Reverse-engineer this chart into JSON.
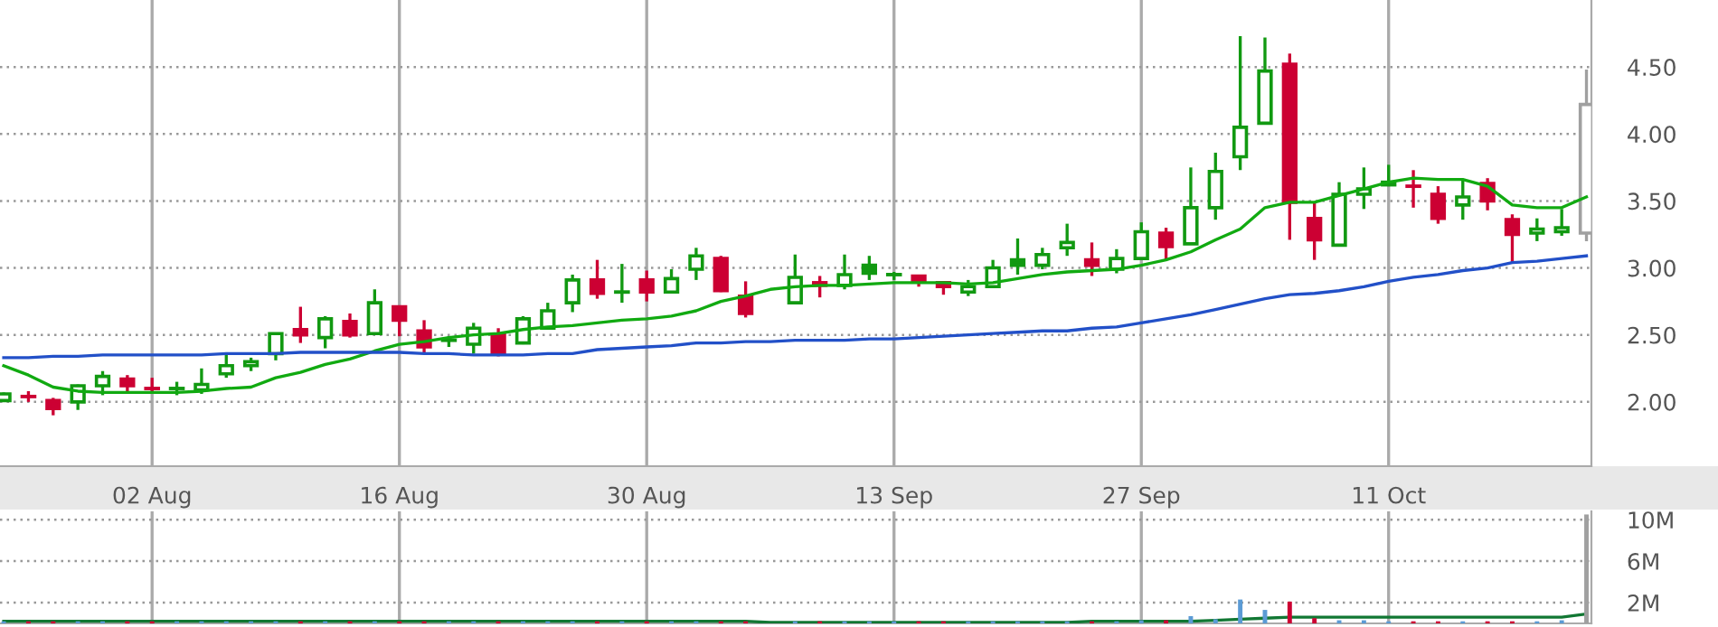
{
  "chart_data": [
    {
      "type": "candlestick",
      "categories": [
        null,
        null,
        null,
        null,
        null,
        null,
        "02 Aug",
        null,
        null,
        null,
        null,
        null,
        null,
        null,
        null,
        null,
        "16 Aug",
        null,
        null,
        null,
        null,
        null,
        null,
        null,
        null,
        null,
        "30 Aug",
        null,
        null,
        null,
        null,
        null,
        null,
        null,
        null,
        null,
        "13 Sep",
        null,
        null,
        null,
        null,
        null,
        null,
        null,
        null,
        null,
        "27 Sep",
        null,
        null,
        null,
        null,
        null,
        null,
        null,
        null,
        null,
        "11 Oct",
        null,
        null,
        null,
        null,
        null,
        null,
        null,
        null
      ],
      "ohlc": [
        [
          2.01,
          2.07,
          2.0,
          2.06
        ],
        [
          2.04,
          2.08,
          2.0,
          2.03
        ],
        [
          2.01,
          2.03,
          1.9,
          1.95
        ],
        [
          2.0,
          2.13,
          1.94,
          2.12
        ],
        [
          2.12,
          2.23,
          2.05,
          2.19
        ],
        [
          2.17,
          2.2,
          2.07,
          2.12
        ],
        [
          2.1,
          2.18,
          2.07,
          2.1
        ],
        [
          2.1,
          2.15,
          2.05,
          2.1
        ],
        [
          2.09,
          2.25,
          2.06,
          2.13
        ],
        [
          2.21,
          2.37,
          2.18,
          2.27
        ],
        [
          2.27,
          2.33,
          2.23,
          2.3
        ],
        [
          2.36,
          2.51,
          2.31,
          2.51
        ],
        [
          2.54,
          2.71,
          2.44,
          2.5
        ],
        [
          2.48,
          2.64,
          2.4,
          2.62
        ],
        [
          2.6,
          2.66,
          2.48,
          2.5
        ],
        [
          2.51,
          2.84,
          2.51,
          2.74
        ],
        [
          2.71,
          2.71,
          2.49,
          2.61
        ],
        [
          2.53,
          2.61,
          2.36,
          2.41
        ],
        [
          2.46,
          2.49,
          2.41,
          2.46
        ],
        [
          2.43,
          2.59,
          2.36,
          2.55
        ],
        [
          2.5,
          2.55,
          2.34,
          2.36
        ],
        [
          2.44,
          2.64,
          2.43,
          2.62
        ],
        [
          2.55,
          2.74,
          2.55,
          2.68
        ],
        [
          2.74,
          2.95,
          2.67,
          2.91
        ],
        [
          2.91,
          3.06,
          2.77,
          2.81
        ],
        [
          2.82,
          3.03,
          2.74,
          2.83
        ],
        [
          2.91,
          2.98,
          2.75,
          2.82
        ],
        [
          2.82,
          2.99,
          2.82,
          2.92
        ],
        [
          2.99,
          3.15,
          2.91,
          3.09
        ],
        [
          3.07,
          3.09,
          2.82,
          2.83
        ],
        [
          2.79,
          2.9,
          2.63,
          2.66
        ],
        null,
        [
          2.74,
          3.1,
          2.74,
          2.93
        ],
        [
          2.89,
          2.94,
          2.78,
          2.87
        ],
        [
          2.87,
          3.1,
          2.84,
          2.95
        ],
        [
          3.02,
          3.09,
          2.91,
          2.96
        ],
        [
          2.95,
          2.97,
          2.91,
          2.94
        ],
        [
          2.94,
          2.94,
          2.86,
          2.9
        ],
        [
          2.89,
          2.89,
          2.8,
          2.86
        ],
        [
          2.82,
          2.91,
          2.79,
          2.86
        ],
        [
          2.86,
          3.06,
          2.86,
          3.0
        ],
        [
          3.06,
          3.22,
          2.95,
          3.02
        ],
        [
          3.02,
          3.15,
          2.99,
          3.1
        ],
        [
          3.15,
          3.33,
          3.09,
          3.19
        ],
        [
          3.06,
          3.19,
          2.94,
          3.02
        ],
        [
          2.99,
          3.14,
          2.96,
          3.07
        ],
        [
          3.07,
          3.34,
          3.07,
          3.27
        ],
        [
          3.26,
          3.3,
          3.06,
          3.16
        ],
        [
          3.18,
          3.75,
          3.18,
          3.45
        ],
        [
          3.45,
          3.86,
          3.36,
          3.72
        ],
        [
          3.83,
          4.73,
          3.73,
          4.05
        ],
        [
          4.08,
          4.72,
          4.08,
          4.47
        ],
        [
          4.52,
          4.6,
          3.21,
          3.49
        ],
        [
          3.37,
          3.49,
          3.06,
          3.21
        ],
        [
          3.17,
          3.64,
          3.17,
          3.55
        ],
        [
          3.55,
          3.75,
          3.44,
          3.59
        ],
        [
          3.64,
          3.77,
          3.61,
          3.62
        ],
        [
          3.61,
          3.73,
          3.45,
          3.61
        ],
        [
          3.55,
          3.61,
          3.33,
          3.37
        ],
        [
          3.47,
          3.66,
          3.36,
          3.53
        ],
        [
          3.63,
          3.67,
          3.43,
          3.5
        ],
        [
          3.36,
          3.4,
          3.04,
          3.25
        ],
        [
          3.26,
          3.37,
          3.2,
          3.29
        ],
        [
          3.27,
          3.44,
          3.24,
          3.3
        ],
        [
          3.26,
          4.48,
          3.2,
          4.22
        ]
      ],
      "colors": [
        "#119911",
        "#cc0033",
        "#cc0033",
        "#119911",
        "#119911",
        "#cc0033",
        "#cc0033",
        "#119911",
        "#119911",
        "#119911",
        "#119911",
        "#119911",
        "#cc0033",
        "#119911",
        "#cc0033",
        "#119911",
        "#cc0033",
        "#cc0033",
        "#119911",
        "#119911",
        "#cc0033",
        "#119911",
        "#119911",
        "#119911",
        "#cc0033",
        "#119911",
        "#cc0033",
        "#119911",
        "#119911",
        "#cc0033",
        "#cc0033",
        null,
        "#119911",
        "#cc0033",
        "#119911",
        "#119911",
        "#119911",
        "#cc0033",
        "#cc0033",
        "#119911",
        "#119911",
        "#119911",
        "#119911",
        "#119911",
        "#cc0033",
        "#119911",
        "#119911",
        "#cc0033",
        "#119911",
        "#119911",
        "#119911",
        "#119911",
        "#cc0033",
        "#cc0033",
        "#119911",
        "#119911",
        "#119911",
        "#cc0033",
        "#cc0033",
        "#119911",
        "#cc0033",
        "#cc0033",
        "#119911",
        "#119911",
        "#a0a0a0"
      ],
      "series": [
        {
          "type": "line",
          "color": "#11aa11",
          "values": [
            2.27,
            2.2,
            2.11,
            2.08,
            2.07,
            2.07,
            2.07,
            2.07,
            2.08,
            2.1,
            2.11,
            2.18,
            2.22,
            2.28,
            2.32,
            2.38,
            2.43,
            2.45,
            2.48,
            2.5,
            2.51,
            2.54,
            2.56,
            2.57,
            2.59,
            2.61,
            2.62,
            2.64,
            2.68,
            2.75,
            2.79,
            2.84,
            2.86,
            2.87,
            2.87,
            2.88,
            2.89,
            2.89,
            2.89,
            2.88,
            2.89,
            2.92,
            2.95,
            2.97,
            2.98,
            2.99,
            3.02,
            3.06,
            3.12,
            3.21,
            3.29,
            3.45,
            3.49,
            3.49,
            3.54,
            3.59,
            3.64,
            3.67,
            3.66,
            3.66,
            3.61,
            3.47,
            3.45,
            3.45,
            3.53
          ]
        },
        {
          "type": "line",
          "color": "#2250c8",
          "values": [
            2.33,
            2.33,
            2.34,
            2.34,
            2.35,
            2.35,
            2.35,
            2.35,
            2.35,
            2.36,
            2.36,
            2.36,
            2.37,
            2.37,
            2.37,
            2.37,
            2.37,
            2.36,
            2.36,
            2.35,
            2.35,
            2.35,
            2.36,
            2.36,
            2.39,
            2.4,
            2.41,
            2.42,
            2.44,
            2.44,
            2.45,
            2.45,
            2.46,
            2.46,
            2.46,
            2.47,
            2.47,
            2.48,
            2.49,
            2.5,
            2.51,
            2.52,
            2.53,
            2.53,
            2.55,
            2.56,
            2.59,
            2.62,
            2.65,
            2.69,
            2.73,
            2.77,
            2.8,
            2.81,
            2.83,
            2.86,
            2.9,
            2.93,
            2.95,
            2.98,
            3.0,
            3.04,
            3.05,
            3.07,
            3.09
          ]
        }
      ],
      "ylim": [
        1.52,
        5.0
      ],
      "yticks": [
        {
          "value": 2.0,
          "label": "2.00"
        },
        {
          "value": 2.5,
          "label": "2.50"
        },
        {
          "value": 3.0,
          "label": "3.00"
        },
        {
          "value": 3.5,
          "label": "3.50"
        },
        {
          "value": 4.0,
          "label": "4.00"
        },
        {
          "value": 4.5,
          "label": "4.50"
        }
      ],
      "grid": true
    },
    {
      "type": "bar",
      "categories": [
        null,
        null,
        null,
        null,
        null,
        null,
        null,
        null,
        null,
        null,
        null,
        null,
        null,
        null,
        null,
        null,
        null,
        null,
        null,
        null,
        null,
        null,
        null,
        null,
        null,
        null,
        null,
        null,
        null,
        null,
        null,
        null,
        null,
        null,
        null,
        null,
        null,
        null,
        null,
        null,
        null,
        null,
        null,
        null,
        null,
        null,
        null,
        null,
        null,
        null,
        null,
        null,
        null,
        null,
        null,
        null,
        null,
        null,
        null,
        null,
        null,
        null,
        null,
        null,
        null
      ],
      "series": [
        {
          "type": "bar",
          "colors": [
            "#5b9bd5",
            "#cc0033",
            "#cc0033",
            "#5b9bd5",
            "#5b9bd5",
            "#cc0033",
            "#cc0033",
            "#5b9bd5",
            "#5b9bd5",
            "#5b9bd5",
            "#5b9bd5",
            "#5b9bd5",
            "#cc0033",
            "#5b9bd5",
            "#cc0033",
            "#5b9bd5",
            "#cc0033",
            "#cc0033",
            "#5b9bd5",
            "#5b9bd5",
            "#cc0033",
            "#5b9bd5",
            "#5b9bd5",
            "#5b9bd5",
            "#cc0033",
            "#5b9bd5",
            "#cc0033",
            "#5b9bd5",
            "#5b9bd5",
            "#cc0033",
            "#cc0033",
            null,
            "#5b9bd5",
            "#cc0033",
            "#5b9bd5",
            "#5b9bd5",
            "#5b9bd5",
            "#cc0033",
            "#cc0033",
            "#5b9bd5",
            "#5b9bd5",
            "#5b9bd5",
            "#5b9bd5",
            "#5b9bd5",
            "#cc0033",
            "#5b9bd5",
            "#5b9bd5",
            "#cc0033",
            "#5b9bd5",
            "#5b9bd5",
            "#5b9bd5",
            "#5b9bd5",
            "#cc0033",
            "#cc0033",
            "#5b9bd5",
            "#5b9bd5",
            "#5b9bd5",
            "#cc0033",
            "#cc0033",
            "#5b9bd5",
            "#cc0033",
            "#cc0033",
            "#5b9bd5",
            "#5b9bd5",
            "#a0a0a0"
          ],
          "values": [
            0.2,
            0.2,
            0.2,
            0.2,
            0.2,
            0.2,
            0.2,
            0.2,
            0.2,
            0.2,
            0.2,
            0.2,
            0.2,
            0.2,
            0.2,
            0.2,
            0.2,
            0.2,
            0.2,
            0.2,
            0.2,
            0.2,
            0.2,
            0.2,
            0.2,
            0.2,
            0.2,
            0.2,
            0.2,
            0.2,
            0.2,
            null,
            0.2,
            0.2,
            0.2,
            0.2,
            0.2,
            0.2,
            0.2,
            0.2,
            0.2,
            0.2,
            0.2,
            0.2,
            0.2,
            0.2,
            0.3,
            0.3,
            0.7,
            0.4,
            2.3,
            1.3,
            2.1,
            0.5,
            0.3,
            0.3,
            0.2,
            0.2,
            0.2,
            0.2,
            0.2,
            0.2,
            0.2,
            0.3,
            10.5
          ]
        },
        {
          "type": "line",
          "color": "#117733",
          "values": [
            0.2,
            0.2,
            0.2,
            0.2,
            0.2,
            0.2,
            0.2,
            0.2,
            0.2,
            0.2,
            0.2,
            0.2,
            0.2,
            0.2,
            0.2,
            0.2,
            0.2,
            0.2,
            0.2,
            0.2,
            0.2,
            0.2,
            0.2,
            0.2,
            0.2,
            0.2,
            0.2,
            0.2,
            0.2,
            0.2,
            0.2,
            0.1,
            0.1,
            0.1,
            0.1,
            0.1,
            0.1,
            0.1,
            0.1,
            0.1,
            0.1,
            0.1,
            0.1,
            0.1,
            0.2,
            0.2,
            0.2,
            0.2,
            0.2,
            0.3,
            0.4,
            0.5,
            0.6,
            0.6,
            0.6,
            0.6,
            0.6,
            0.6,
            0.6,
            0.6,
            0.6,
            0.6,
            0.6,
            0.6,
            0.9
          ]
        }
      ],
      "ylim": [
        0,
        10.8
      ],
      "yticks": [
        {
          "value": 2,
          "label": "2M"
        },
        {
          "value": 6,
          "label": "6M"
        },
        {
          "value": 10,
          "label": "10M"
        }
      ],
      "tick_labels": "y",
      "grid": true
    }
  ]
}
